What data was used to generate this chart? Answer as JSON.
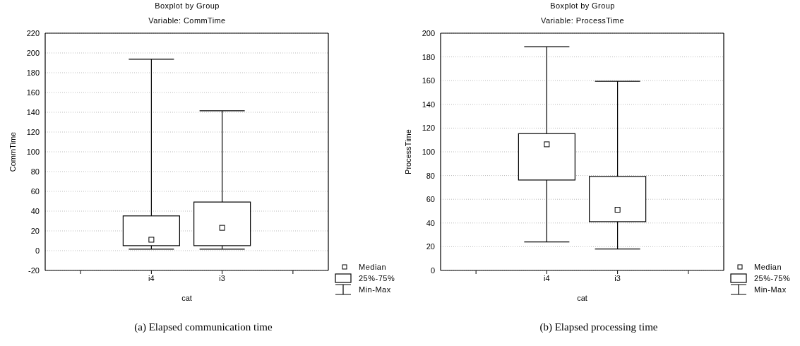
{
  "chart_data": [
    {
      "type": "box",
      "title": "Boxplot by Group",
      "subtitle": "Variable: CommTime",
      "xlabel": "cat",
      "ylabel": "CommTime",
      "categories": [
        "i4",
        "i3"
      ],
      "boxes": [
        {
          "low": 1.5,
          "q1": 5,
          "median": 11,
          "q3": 35,
          "high": 193
        },
        {
          "low": 1.5,
          "q1": 5,
          "median": 23,
          "q3": 49,
          "high": 141
        }
      ],
      "ylim": [
        -20,
        220
      ],
      "yticks": [
        -20,
        0,
        20,
        40,
        60,
        80,
        100,
        120,
        140,
        160,
        180,
        200,
        220
      ],
      "grid": "y",
      "annotations": [
        "Median",
        "25%-75%",
        "Min-Max",
        "(a) Elapsed communication time"
      ]
    },
    {
      "type": "box",
      "title": "Boxplot by Group",
      "subtitle": "Variable: ProcessTime",
      "xlabel": "cat",
      "ylabel": "ProcessTime",
      "categories": [
        "i4",
        "i3"
      ],
      "boxes": [
        {
          "low": 24,
          "q1": 76,
          "median": 106,
          "q3": 115,
          "high": 188
        },
        {
          "low": 18,
          "q1": 41,
          "median": 51,
          "q3": 79,
          "high": 159
        }
      ],
      "ylim": [
        0,
        200
      ],
      "yticks": [
        0,
        20,
        40,
        60,
        80,
        100,
        120,
        140,
        160,
        180,
        200
      ],
      "grid": "y",
      "annotations": [
        "Median",
        "25%-75%",
        "Min-Max",
        "(b) Elapsed processing time"
      ]
    }
  ]
}
